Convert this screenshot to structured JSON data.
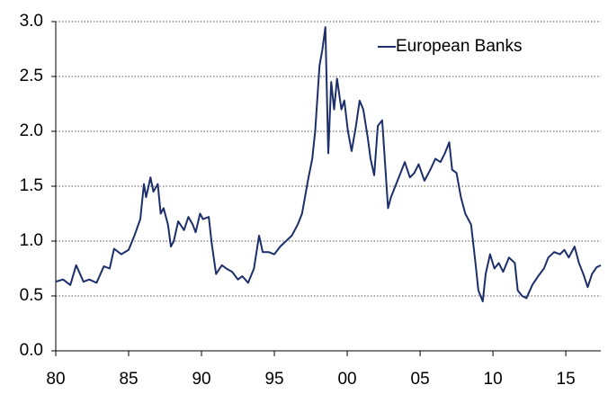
{
  "chart_data": {
    "type": "line",
    "x": [
      1980,
      1980.5,
      1981,
      1981.4,
      1981.9,
      1982.3,
      1982.8,
      1983.3,
      1983.7,
      1984,
      1984.5,
      1985,
      1985.4,
      1985.8,
      1986.05,
      1986.2,
      1986.5,
      1986.7,
      1987,
      1987.2,
      1987.4,
      1987.7,
      1987.9,
      1988.1,
      1988.4,
      1988.8,
      1989.1,
      1989.4,
      1989.6,
      1989.9,
      1990.1,
      1990.5,
      1990.7,
      1991,
      1991.4,
      1991.7,
      1992.1,
      1992.5,
      1992.8,
      1993.2,
      1993.6,
      1993.95,
      1994.2,
      1994.6,
      1995,
      1995.4,
      1995.8,
      1996.2,
      1996.6,
      1996.9,
      1997.3,
      1997.6,
      1997.8,
      1998.1,
      1998.3,
      1998.5,
      1998.7,
      1998.9,
      1999.1,
      1999.3,
      1999.6,
      1999.8,
      2000.05,
      2000.3,
      2000.6,
      2000.85,
      2001.1,
      2001.4,
      2001.6,
      2001.85,
      2002.1,
      2002.4,
      2002.6,
      2002.8,
      2003,
      2003.3,
      2003.6,
      2003.95,
      2004.3,
      2004.6,
      2004.9,
      2005.3,
      2005.7,
      2006.05,
      2006.4,
      2006.7,
      2007,
      2007.2,
      2007.5,
      2007.8,
      2008.1,
      2008.5,
      2008.8,
      2009,
      2009.3,
      2009.5,
      2009.8,
      2010.1,
      2010.4,
      2010.7,
      2011.1,
      2011.5,
      2011.7,
      2012,
      2012.3,
      2012.7,
      2013.1,
      2013.5,
      2013.8,
      2014.2,
      2014.6,
      2014.9,
      2015.2,
      2015.6,
      2015.9,
      2016.2,
      2016.5,
      2016.8,
      2017.1,
      2017.4
    ],
    "series": [
      {
        "name": "European Banks",
        "color": "#1c2f6b",
        "values": [
          0.63,
          0.65,
          0.6,
          0.78,
          0.63,
          0.65,
          0.62,
          0.77,
          0.75,
          0.93,
          0.88,
          0.92,
          1.05,
          1.2,
          1.52,
          1.4,
          1.58,
          1.45,
          1.52,
          1.25,
          1.3,
          1.15,
          0.95,
          1.0,
          1.18,
          1.1,
          1.22,
          1.15,
          1.08,
          1.25,
          1.2,
          1.22,
          0.98,
          0.7,
          0.78,
          0.75,
          0.72,
          0.65,
          0.68,
          0.62,
          0.75,
          1.05,
          0.9,
          0.9,
          0.88,
          0.95,
          1.0,
          1.05,
          1.15,
          1.25,
          1.55,
          1.75,
          2.0,
          2.6,
          2.75,
          2.95,
          1.8,
          2.45,
          2.2,
          2.48,
          2.2,
          2.28,
          2.0,
          1.82,
          2.05,
          2.28,
          2.2,
          1.95,
          1.75,
          1.6,
          2.05,
          2.1,
          1.7,
          1.3,
          1.4,
          1.5,
          1.6,
          1.72,
          1.58,
          1.62,
          1.7,
          1.55,
          1.65,
          1.75,
          1.72,
          1.8,
          1.9,
          1.65,
          1.62,
          1.4,
          1.25,
          1.15,
          0.8,
          0.55,
          0.45,
          0.7,
          0.88,
          0.75,
          0.8,
          0.72,
          0.85,
          0.8,
          0.55,
          0.5,
          0.48,
          0.6,
          0.68,
          0.75,
          0.85,
          0.9,
          0.88,
          0.92,
          0.85,
          0.95,
          0.8,
          0.7,
          0.58,
          0.7,
          0.76,
          0.78
        ]
      }
    ],
    "xlim": [
      1980,
      2017.4
    ],
    "xticks": [
      {
        "value": 1980,
        "label": "80"
      },
      {
        "value": 1985,
        "label": "85"
      },
      {
        "value": 1990,
        "label": "90"
      },
      {
        "value": 1995,
        "label": "95"
      },
      {
        "value": 2000,
        "label": "00"
      },
      {
        "value": 2005,
        "label": "05"
      },
      {
        "value": 2010,
        "label": "10"
      },
      {
        "value": 2015,
        "label": "15"
      }
    ],
    "ylim": [
      0,
      3
    ],
    "yticks": [
      {
        "value": 0,
        "label": "0.0"
      },
      0.5,
      {
        "value": 1,
        "label": "1.0"
      },
      1.5,
      {
        "value": 2,
        "label": "2.0"
      },
      2.5,
      {
        "value": 3,
        "label": "3.0"
      }
    ],
    "grid": true,
    "legend": "top"
  }
}
